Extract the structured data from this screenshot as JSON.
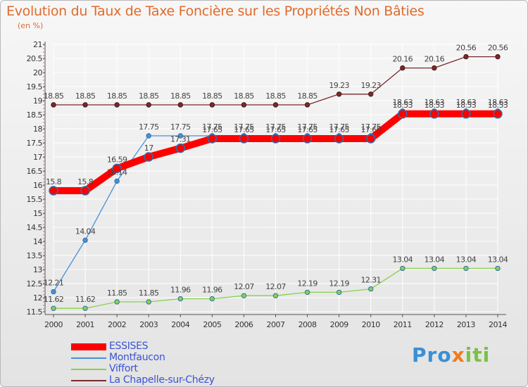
{
  "chart_data": {
    "type": "line",
    "title": "Evolution du Taux de Taxe Foncière sur les Propriétés Non Bâties",
    "ylabel": "(en %)",
    "x": [
      2000,
      2001,
      2002,
      2003,
      2004,
      2005,
      2006,
      2007,
      2008,
      2009,
      2010,
      2011,
      2012,
      2013,
      2014
    ],
    "ylim": [
      11.5,
      21
    ],
    "yticks": [
      11.5,
      12,
      12.5,
      13,
      13.5,
      14,
      14.5,
      15,
      15.5,
      16,
      16.5,
      17,
      17.5,
      18,
      18.5,
      19,
      19.5,
      20,
      20.5,
      21
    ],
    "series": [
      {
        "name": "ESSISES",
        "color": "#ff0000",
        "values": [
          15.8,
          15.8,
          16.59,
          17,
          17.31,
          17.65,
          17.65,
          17.65,
          17.65,
          17.65,
          17.65,
          18.53,
          18.53,
          18.53,
          18.53
        ],
        "labels": [
          "15.8",
          "15.8",
          "16.59",
          "17",
          "17.31",
          "17.65",
          "17.65",
          "17.65",
          "17.65",
          "17.65",
          "17.65",
          "18.53",
          "18.53",
          "18.53",
          "18.53"
        ]
      },
      {
        "name": "Montfaucon",
        "color": "#4a90d6",
        "values": [
          12.21,
          14.04,
          16.14,
          17.75,
          17.75,
          17.75,
          17.75,
          17.75,
          17.75,
          17.75,
          17.75,
          18.63,
          18.63,
          18.63,
          18.63
        ],
        "labels": [
          "12.21",
          "14.04",
          "16.14",
          "17.75",
          "17.75",
          "17.75",
          "17.75",
          "17.75",
          "17.75",
          "17.75",
          "17.75",
          "18.63",
          "18.63",
          "18.63",
          "18.63"
        ]
      },
      {
        "name": "Viffort",
        "color": "#88d14a",
        "values": [
          11.62,
          11.62,
          11.85,
          11.85,
          11.96,
          11.96,
          12.07,
          12.07,
          12.19,
          12.19,
          12.31,
          13.04,
          13.04,
          13.04,
          13.04
        ],
        "labels": [
          "11.62",
          "11.62",
          "11.85",
          "11.85",
          "11.96",
          "11.96",
          "12.07",
          "12.07",
          "12.19",
          "12.19",
          "12.31",
          "13.04",
          "13.04",
          "13.04",
          "13.04"
        ]
      },
      {
        "name": "La Chapelle-sur-Chézy",
        "color": "#7a2a2a",
        "values": [
          18.85,
          18.85,
          18.85,
          18.85,
          18.85,
          18.85,
          18.85,
          18.85,
          18.85,
          19.23,
          19.23,
          20.16,
          20.16,
          20.56,
          20.56
        ],
        "labels": [
          "18.85",
          "18.85",
          "18.85",
          "18.85",
          "18.85",
          "18.85",
          "18.85",
          "18.85",
          "18.85",
          "19.23",
          "19.23",
          "20.16",
          "20.16",
          "20.56",
          "20.56"
        ]
      }
    ],
    "grid": true,
    "legend": "bottom-left"
  },
  "logo": {
    "part1": "Pro",
    "part2": "x",
    "part3": "iti"
  }
}
